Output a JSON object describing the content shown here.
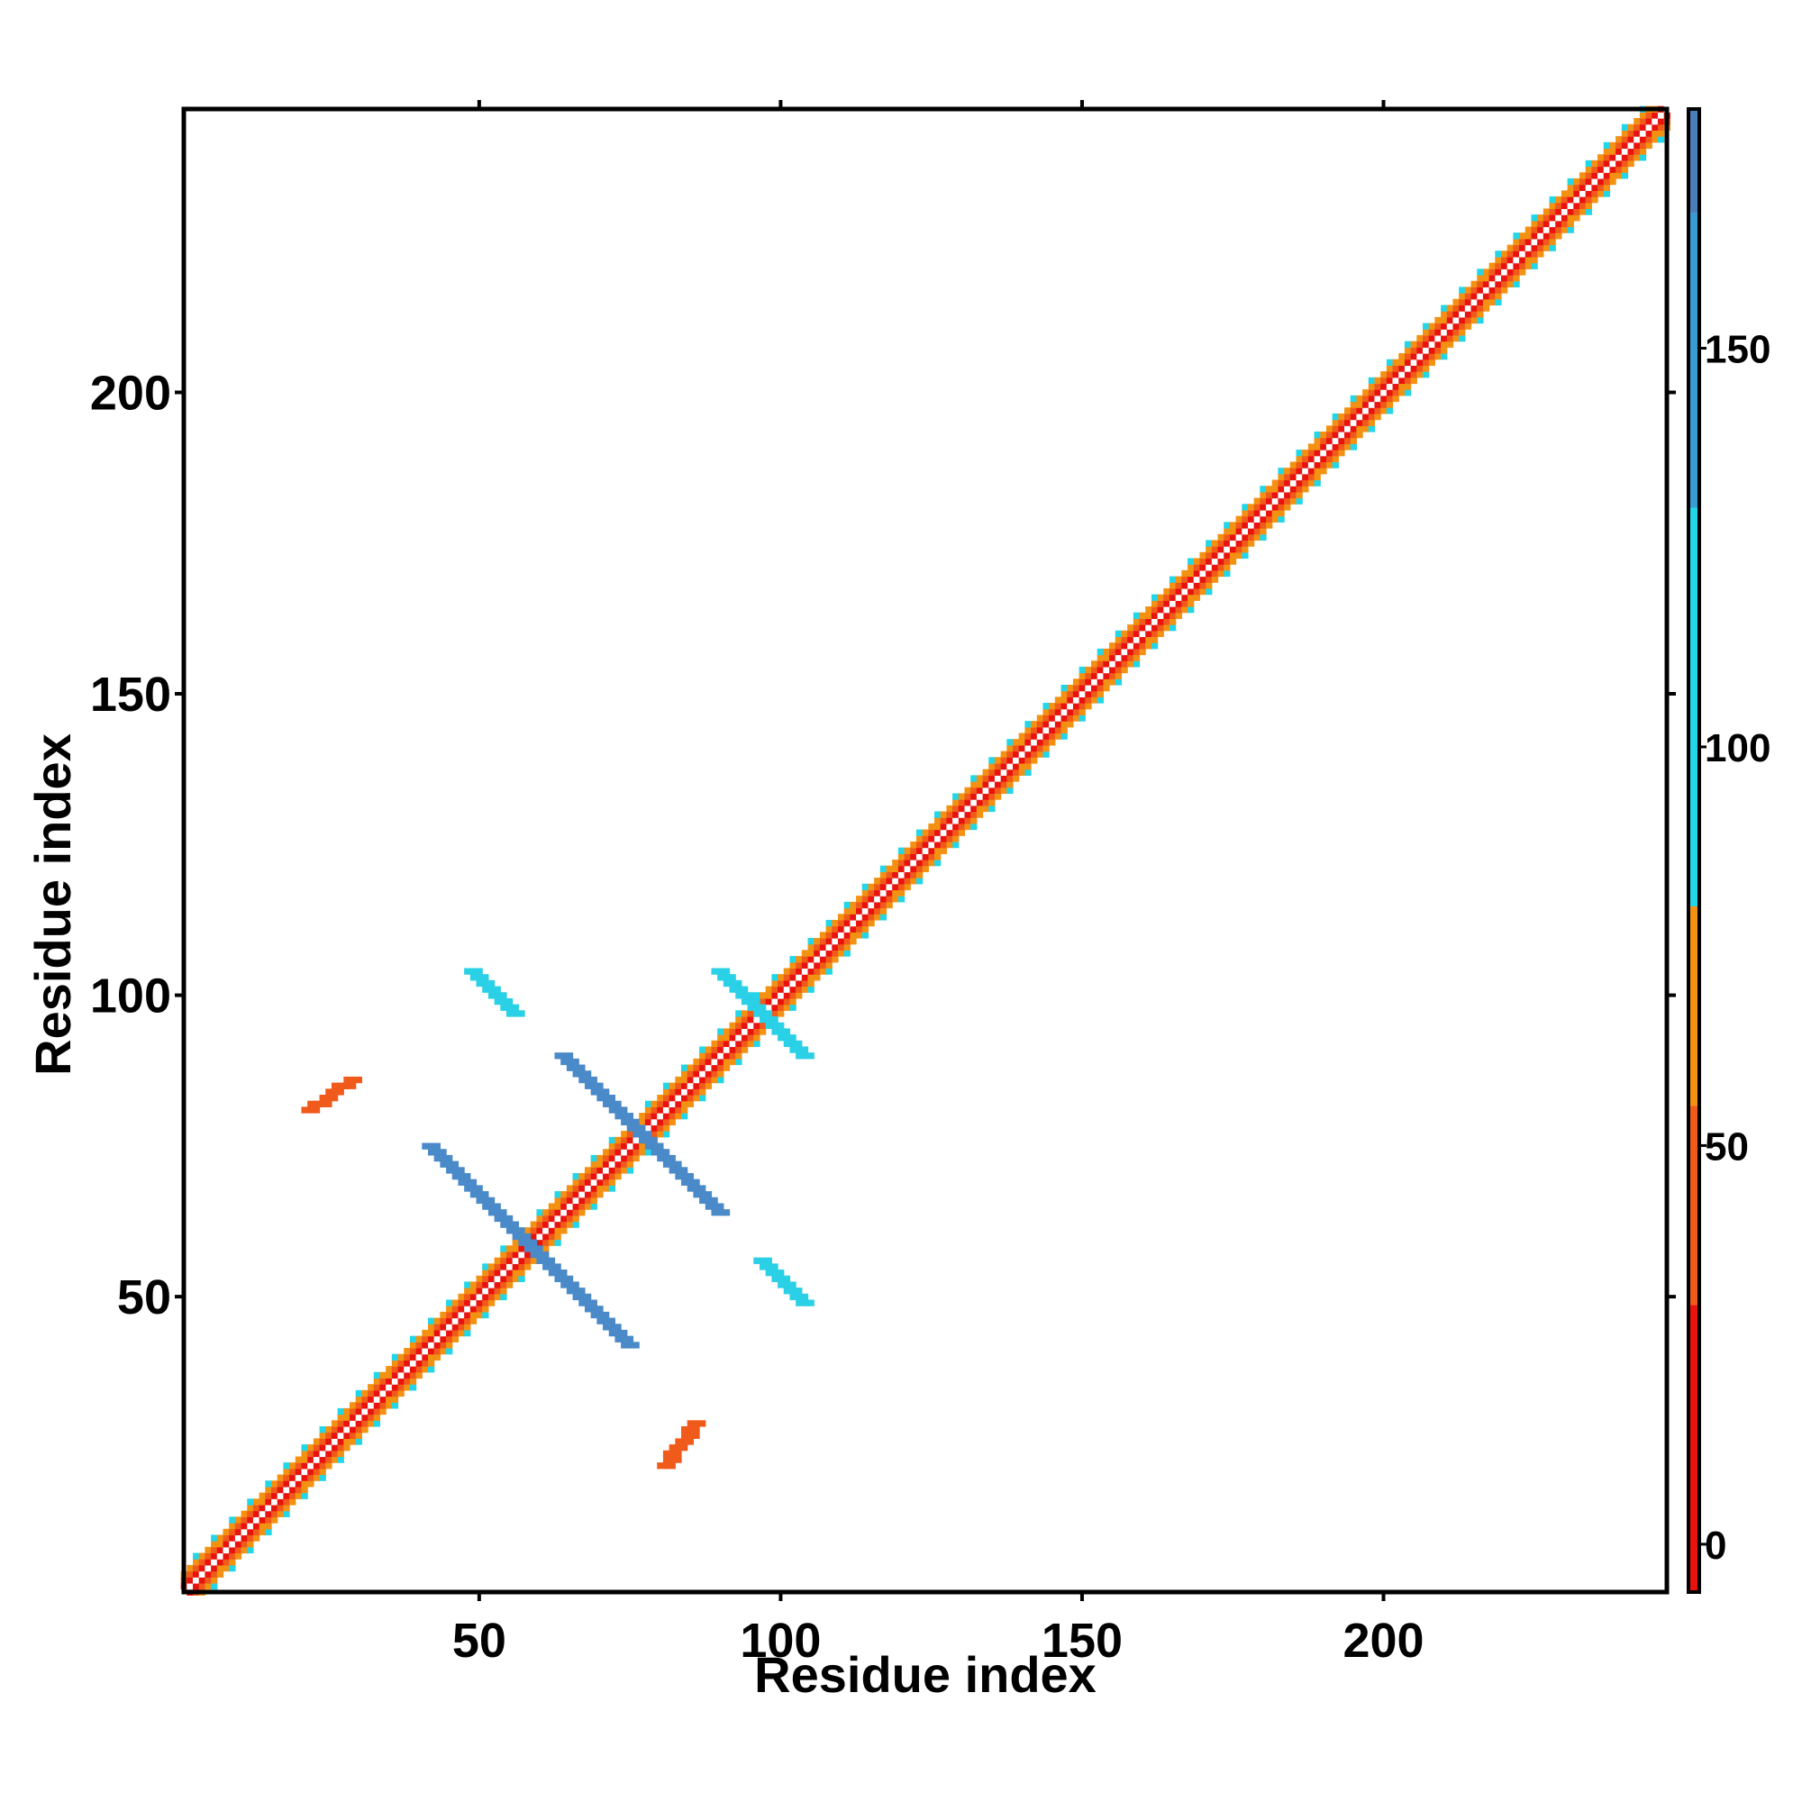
{
  "chart_data": {
    "type": "heatmap",
    "title": "",
    "xlabel": "Residue index",
    "ylabel": "Residue index",
    "xlim": [
      1,
      247
    ],
    "ylim": [
      1,
      247
    ],
    "x_ticks": [
      50,
      100,
      150,
      200
    ],
    "y_ticks": [
      50,
      100,
      150,
      200
    ],
    "grid": false,
    "colorbar": {
      "position": "right",
      "range": [
        -6,
        180
      ],
      "ticks": [
        0,
        50,
        100,
        150
      ],
      "bins": [
        {
          "from": -6,
          "to": 30,
          "color": "#e8120f"
        },
        {
          "from": 30,
          "to": 55,
          "color": "#f05a1a"
        },
        {
          "from": 55,
          "to": 80,
          "color": "#f39212"
        },
        {
          "from": 80,
          "to": 130,
          "color": "#22d6e8"
        },
        {
          "from": 130,
          "to": 167,
          "color": "#3a9bd0"
        },
        {
          "from": 167,
          "to": 180,
          "color": "#4b7eb8"
        }
      ]
    },
    "contact_bands": [
      {
        "name": "main-diagonal",
        "from": [
          1,
          1
        ],
        "to": [
          247,
          247
        ],
        "kind": "diagonal"
      },
      {
        "name": "antiparallel-1",
        "from": [
          42,
          75
        ],
        "to": [
          75,
          42
        ],
        "color": "#4a8ac8"
      },
      {
        "name": "antiparallel-2",
        "from": [
          64,
          90
        ],
        "to": [
          90,
          64
        ],
        "color": "#4a8ac8"
      },
      {
        "name": "antiparallel-3",
        "from": [
          90,
          104
        ],
        "to": [
          104,
          90
        ],
        "color": "#2ad0e6"
      },
      {
        "name": "helix-contact-1",
        "from": [
          22,
          81
        ],
        "to": [
          29,
          86
        ],
        "color": "#f05a1a"
      },
      {
        "name": "helix-contact-2",
        "from": [
          81,
          22
        ],
        "to": [
          86,
          29
        ],
        "color": "#f05a1a"
      },
      {
        "name": "sheet-contact-1",
        "from": [
          49,
          104
        ],
        "to": [
          56,
          97
        ],
        "color": "#2ad0e6"
      },
      {
        "name": "sheet-contact-2",
        "from": [
          97,
          56
        ],
        "to": [
          104,
          49
        ],
        "color": "#2ad0e6"
      }
    ]
  }
}
